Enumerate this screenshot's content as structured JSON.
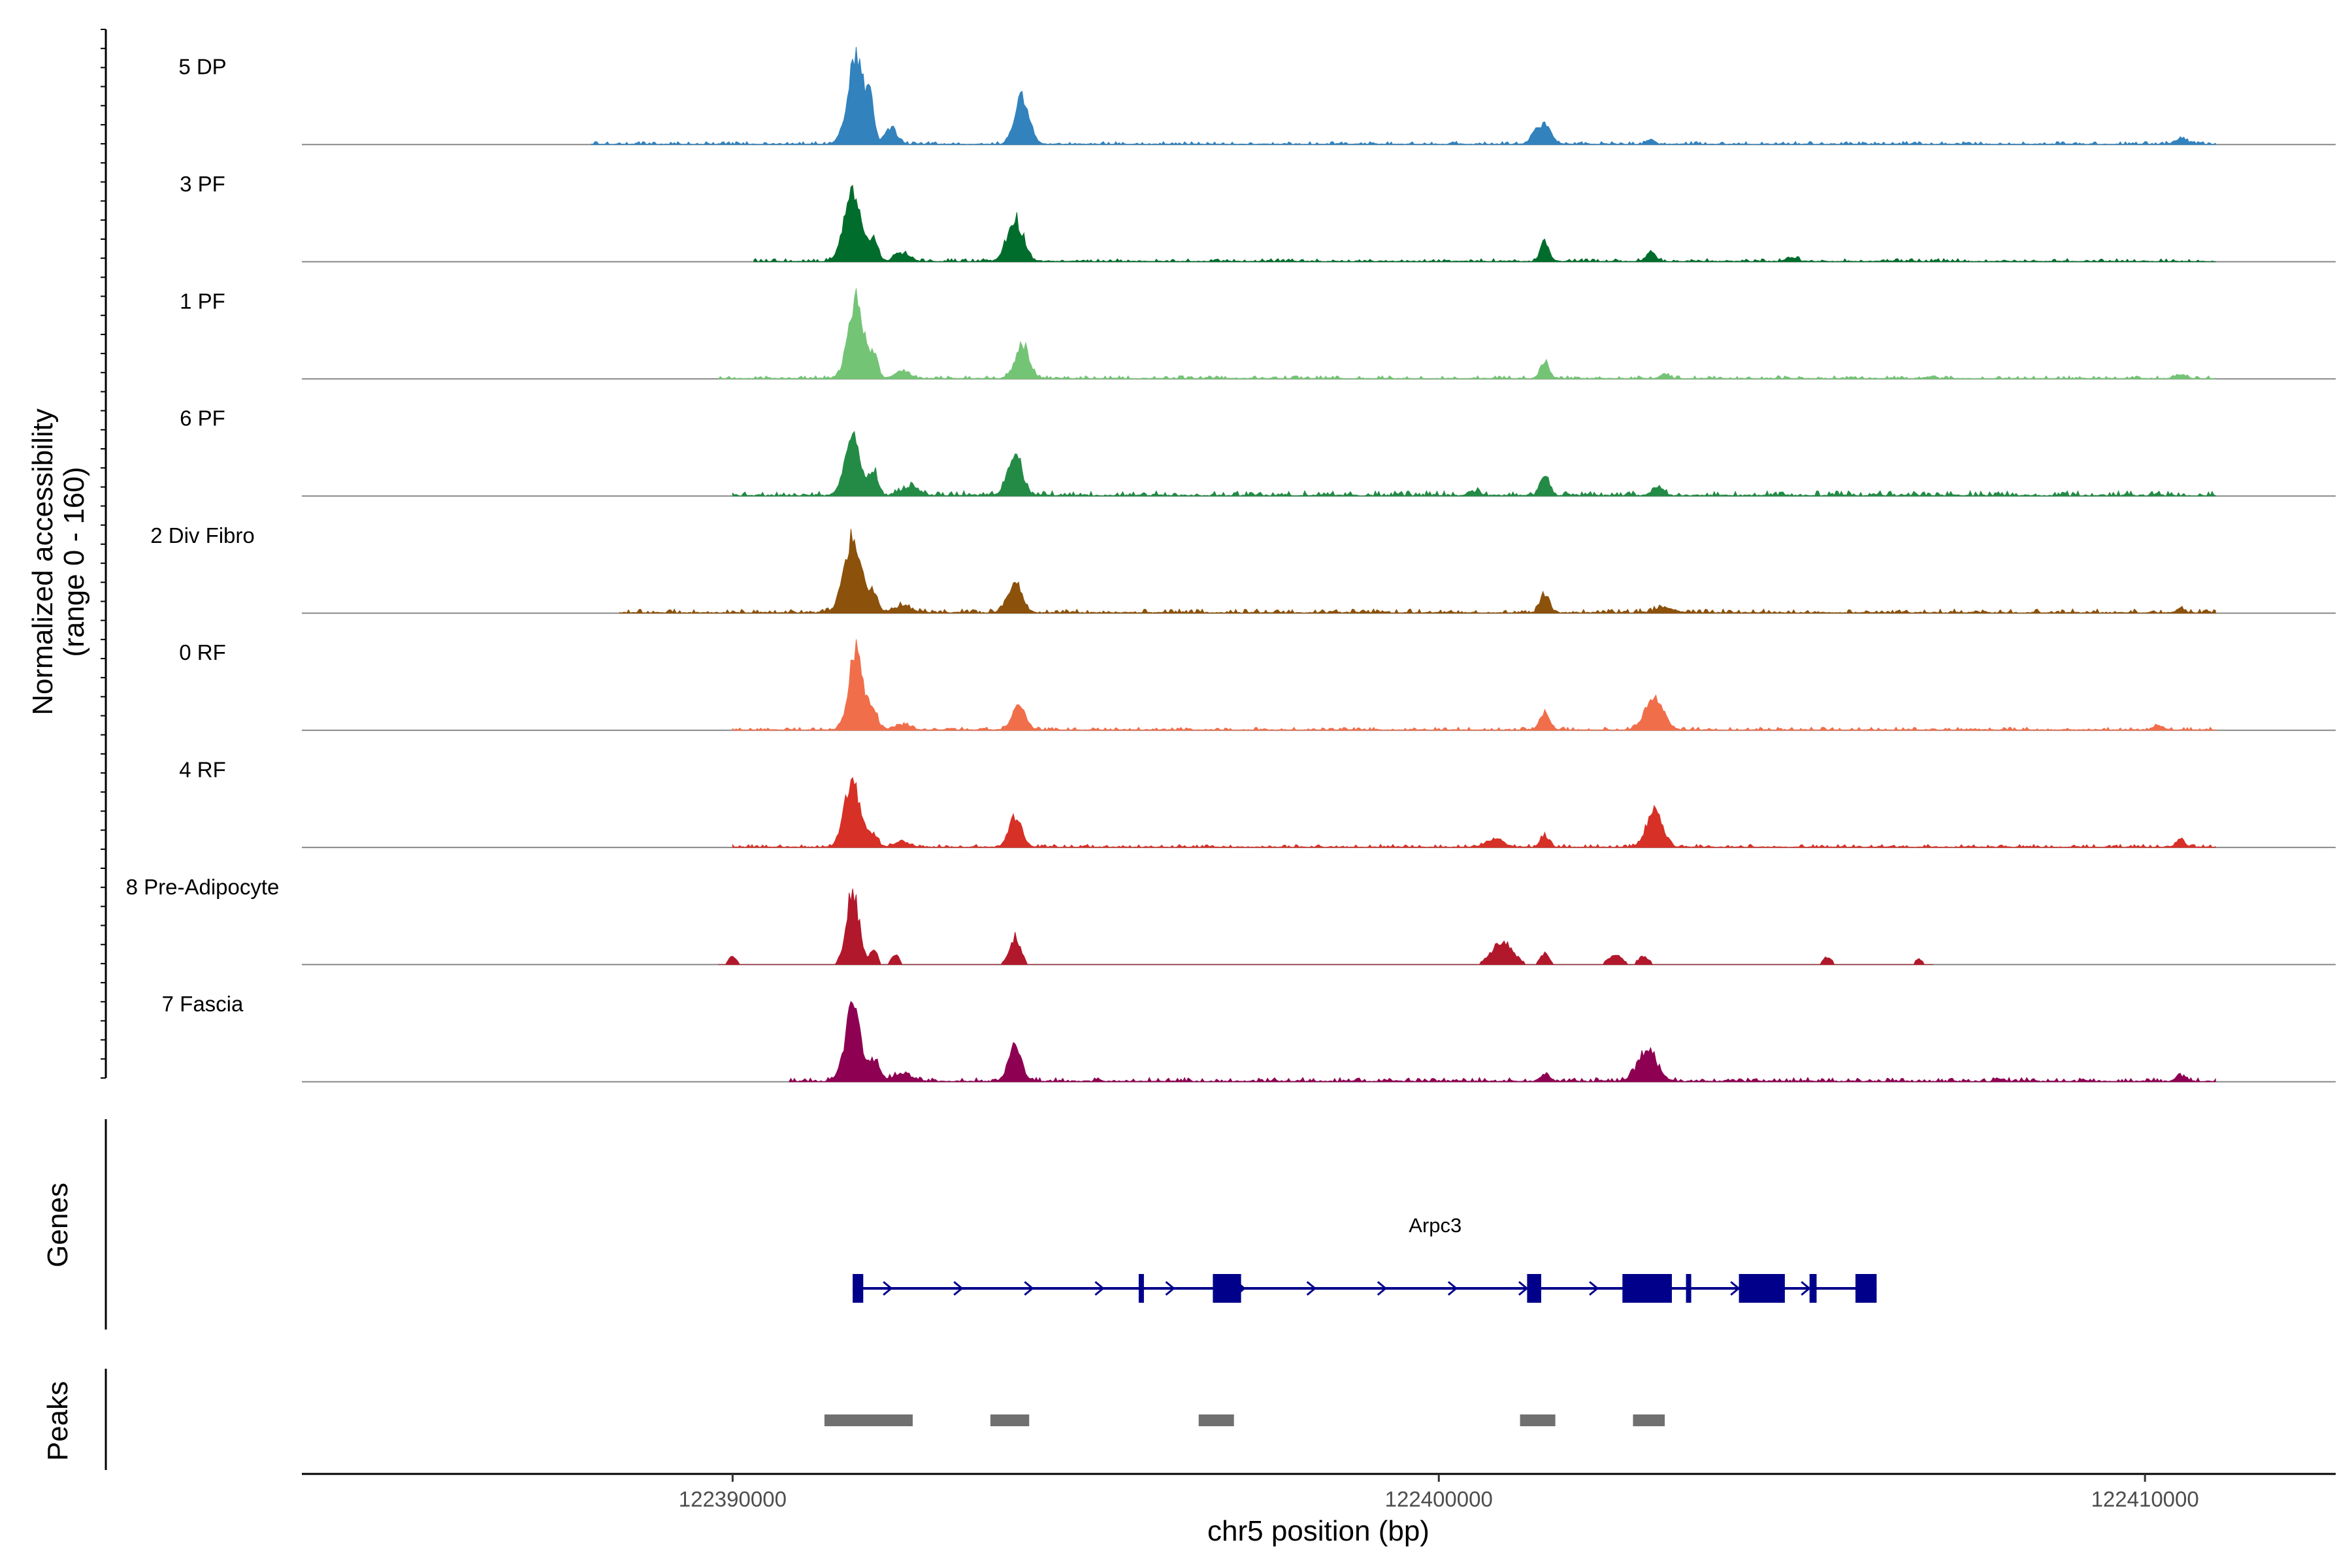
{
  "chart_data": {
    "type": "area",
    "title": "",
    "xlabel": "chr5 position (bp)",
    "ylabel_line1": "Normalized accessibility",
    "ylabel_line2": "(range 0 - 160)",
    "yrange": [
      0,
      160
    ],
    "xlim": [
      122383900,
      122412700
    ],
    "x_ticks": [
      122390000,
      122400000,
      122410000
    ],
    "x_tick_labels": [
      "122390000",
      "122400000",
      "122410000"
    ],
    "series": [
      {
        "name": "5 DP",
        "color": "#3282BD",
        "peaks": [
          [
            122391750,
            150,
            120
          ],
          [
            122391950,
            60,
            50
          ],
          [
            122392250,
            30,
            80
          ],
          [
            122394100,
            85,
            100
          ],
          [
            122401500,
            35,
            90
          ],
          [
            122401350,
            14,
            60
          ],
          [
            122403000,
            8,
            60
          ],
          [
            122410500,
            10,
            80
          ]
        ],
        "noise": 3,
        "range": [
          122388000,
          122411000
        ]
      },
      {
        "name": "3 PF",
        "color": "#006D2C",
        "peaks": [
          [
            122391700,
            120,
            120
          ],
          [
            122392000,
            35,
            60
          ],
          [
            122392400,
            15,
            100
          ],
          [
            122394000,
            75,
            110
          ],
          [
            122401500,
            35,
            60
          ],
          [
            122403000,
            18,
            60
          ],
          [
            122405000,
            6,
            80
          ]
        ],
        "noise": 3,
        "range": [
          122390300,
          122411000
        ]
      },
      {
        "name": "1 PF",
        "color": "#74C476",
        "peaks": [
          [
            122391750,
            140,
            110
          ],
          [
            122392000,
            35,
            60
          ],
          [
            122392400,
            14,
            100
          ],
          [
            122394100,
            60,
            100
          ],
          [
            122401500,
            30,
            60
          ],
          [
            122403200,
            8,
            60
          ],
          [
            122410500,
            8,
            60
          ]
        ],
        "noise": 3,
        "range": [
          122389800,
          122411000
        ]
      },
      {
        "name": "6 PF",
        "color": "#238B45",
        "peaks": [
          [
            122391700,
            110,
            110
          ],
          [
            122392000,
            45,
            60
          ],
          [
            122392500,
            15,
            120
          ],
          [
            122394000,
            75,
            100
          ],
          [
            122401500,
            38,
            60
          ],
          [
            122403100,
            14,
            80
          ],
          [
            122400500,
            8,
            80
          ]
        ],
        "noise": 5,
        "range": [
          122390000,
          122411000
        ]
      },
      {
        "name": "2 Div Fibro",
        "color": "#8C510A",
        "peaks": [
          [
            122391700,
            135,
            120
          ],
          [
            122392000,
            35,
            60
          ],
          [
            122392400,
            12,
            120
          ],
          [
            122394000,
            50,
            100
          ],
          [
            122401500,
            35,
            60
          ],
          [
            122403200,
            8,
            150
          ],
          [
            122410500,
            8,
            60
          ]
        ],
        "noise": 4,
        "range": [
          122388400,
          122411000
        ]
      },
      {
        "name": "0 RF",
        "color": "#F16E4B",
        "peaks": [
          [
            122391750,
            150,
            100
          ],
          [
            122392000,
            35,
            60
          ],
          [
            122392400,
            10,
            100
          ],
          [
            122394050,
            45,
            90
          ],
          [
            122401500,
            30,
            70
          ],
          [
            122403050,
            55,
            130
          ],
          [
            122410200,
            8,
            60
          ]
        ],
        "noise": 3,
        "range": [
          122390000,
          122411000
        ]
      },
      {
        "name": "4 RF",
        "color": "#D73027",
        "peaks": [
          [
            122391700,
            120,
            110
          ],
          [
            122392000,
            22,
            60
          ],
          [
            122392400,
            10,
            100
          ],
          [
            122394000,
            55,
            90
          ],
          [
            122401500,
            22,
            60
          ],
          [
            122400800,
            14,
            120
          ],
          [
            122403050,
            65,
            110
          ],
          [
            122410500,
            14,
            60
          ]
        ],
        "noise": 3,
        "range": [
          122390000,
          122411000
        ]
      },
      {
        "name": "8 Pre-Adipocyte",
        "color": "#B2182B",
        "peaks": [
          [
            122391700,
            130,
            90
          ],
          [
            122392000,
            30,
            50
          ],
          [
            122392300,
            20,
            50
          ],
          [
            122394000,
            50,
            80
          ],
          [
            122390000,
            14,
            60
          ],
          [
            122400900,
            40,
            150
          ],
          [
            122401500,
            20,
            60
          ],
          [
            122402500,
            16,
            100
          ],
          [
            122402900,
            14,
            80
          ],
          [
            122405500,
            14,
            60
          ],
          [
            122406800,
            10,
            60
          ]
        ],
        "noise": 0,
        "sparse": true,
        "range": [
          122389800,
          122407000
        ]
      },
      {
        "name": "7 Fascia",
        "color": "#8E0152",
        "peaks": [
          [
            122391700,
            125,
            110
          ],
          [
            122392000,
            35,
            80
          ],
          [
            122392400,
            14,
            120
          ],
          [
            122394000,
            68,
            90
          ],
          [
            122401500,
            14,
            60
          ],
          [
            122402950,
            58,
            130
          ],
          [
            122410500,
            10,
            60
          ]
        ],
        "noise": 4,
        "range": [
          122390800,
          122411000
        ]
      }
    ],
    "genes_label": "Genes",
    "gene": {
      "name": "Arpc3",
      "strand": "+",
      "start": 122391700,
      "end": 122406200,
      "exons": [
        [
          122391700,
          122391850
        ],
        [
          122395750,
          122395820
        ],
        [
          122396800,
          122397200
        ],
        [
          122401250,
          122401450
        ],
        [
          122402600,
          122403300
        ],
        [
          122403500,
          122403550
        ],
        [
          122404250,
          122404900
        ],
        [
          122405250,
          122405350
        ],
        [
          122405900,
          122406200
        ]
      ],
      "color": "#00008B"
    },
    "peaks_label": "Peaks",
    "peaks": [
      [
        122391300,
        122392550
      ],
      [
        122393650,
        122394200
      ],
      [
        122396600,
        122397100
      ],
      [
        122401150,
        122401650
      ],
      [
        122402750,
        122403200
      ]
    ],
    "peak_color": "#707070"
  }
}
